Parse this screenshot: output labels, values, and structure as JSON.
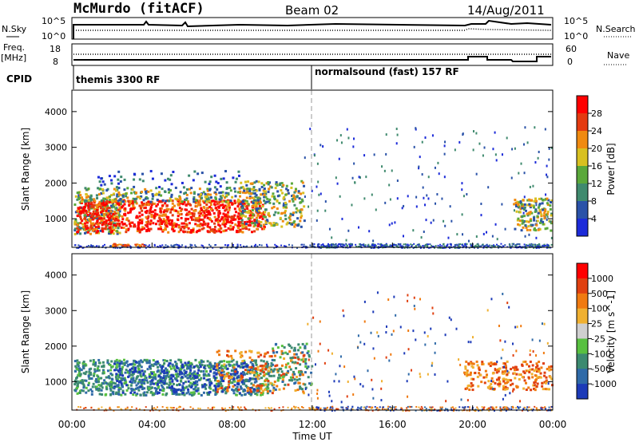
{
  "header": {
    "station": "McMurdo (fitACF)",
    "beam": "Beam 02",
    "date": "14/Aug/2011"
  },
  "top_panel": {
    "left_label": "N.Sky",
    "left_ticks": [
      "10^5",
      "10^0"
    ],
    "right_label": "N.Search",
    "right_ticks": [
      "10^5",
      "10^0"
    ]
  },
  "freq_panel": {
    "left_label_line1": "Freq.",
    "left_label_line2": "[MHz]",
    "left_ticks": [
      "18",
      "8"
    ],
    "right_label": "Nave",
    "right_ticks": [
      "60",
      "0"
    ]
  },
  "cpid": {
    "label": "CPID",
    "segment1": "themis 3300 RF",
    "segment2": "normalsound (fast) 157 RF"
  },
  "chart_data": [
    {
      "type": "heatmap",
      "title": "",
      "ylabel": "Slant Range [km]",
      "xlabel": "",
      "y_ticks": [
        "1000",
        "2000",
        "3000",
        "4000"
      ],
      "colorbar_label": "Power [dB]",
      "colorbar_ticks": [
        "4",
        "8",
        "12",
        "16",
        "20",
        "24",
        "28"
      ],
      "colors": [
        "#1c2bd9",
        "#2a52a8",
        "#3f8a6e",
        "#5aa83a",
        "#d8c020",
        "#f08a10",
        "#e43a10",
        "#ff0000"
      ]
    },
    {
      "type": "heatmap",
      "title": "",
      "ylabel": "Slant Range [km]",
      "xlabel": "Time UT",
      "y_ticks": [
        "1000",
        "2000",
        "3000",
        "4000"
      ],
      "x_ticks": [
        "00:00",
        "04:00",
        "08:00",
        "12:00",
        "16:00",
        "20:00",
        "00:00"
      ],
      "colorbar_label": "Velocity [m s^-1]",
      "colorbar_ticks": [
        "1000",
        "500",
        "100",
        "25",
        "-25",
        "-100",
        "-500",
        "-1000"
      ],
      "colors": [
        "#1c3ab8",
        "#2f6aa8",
        "#3c8a70",
        "#58c040",
        "#cfcfcf",
        "#f0b030",
        "#f07a10",
        "#e04010",
        "#ff0000"
      ]
    }
  ]
}
